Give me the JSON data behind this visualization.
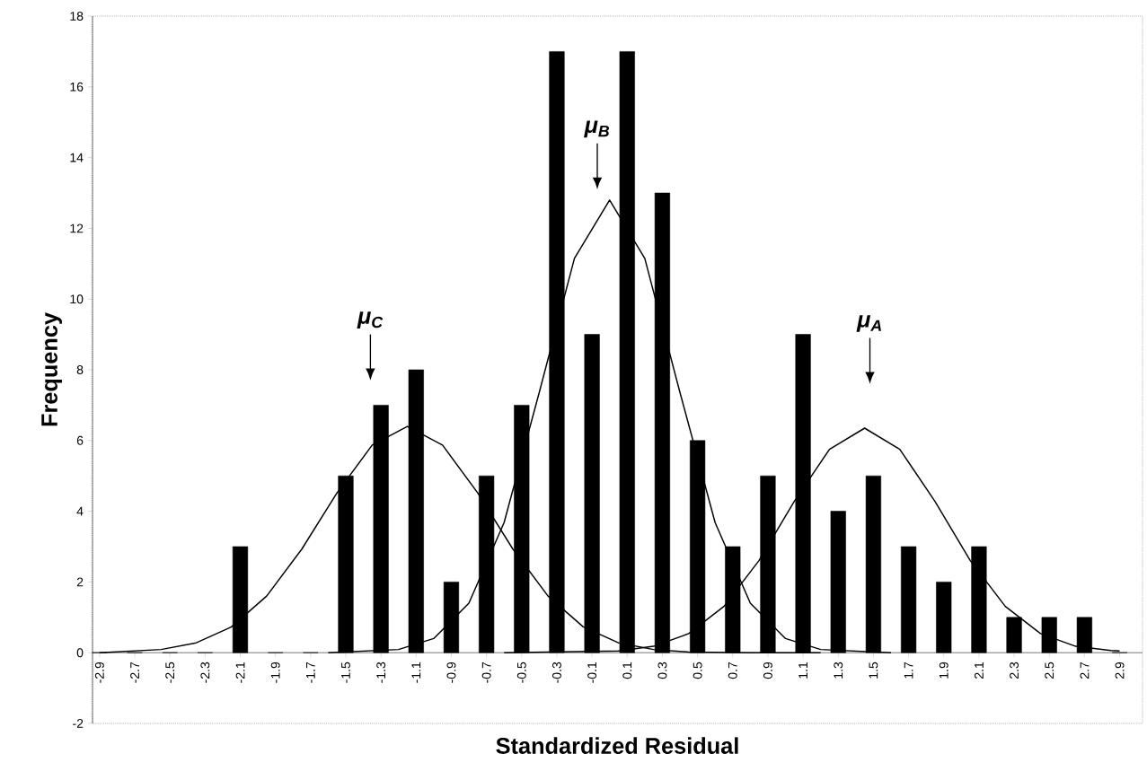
{
  "chart_data": {
    "type": "bar",
    "xlabel": "Standardized Residual",
    "ylabel": "Frequency",
    "xlim": [
      -2.94,
      3.03
    ],
    "ylim": [
      -2,
      18
    ],
    "xticks": [
      -2.9,
      -2.7,
      -2.5,
      -2.3,
      -2.1,
      -1.9,
      -1.7,
      -1.5,
      -1.3,
      -1.1,
      -0.9,
      -0.7,
      -0.5,
      -0.3,
      -0.1,
      0.1,
      0.3,
      0.5,
      0.7,
      0.9,
      1.1,
      1.3,
      1.5,
      1.7,
      1.9,
      2.1,
      2.3,
      2.5,
      2.7,
      2.9
    ],
    "yticks": [
      -2,
      0,
      2,
      4,
      6,
      8,
      10,
      12,
      14,
      16,
      18
    ],
    "series": [
      {
        "color": "#000000",
        "x": [
          -2.9,
          -2.7,
          -2.5,
          -2.3,
          -2.1,
          -1.9,
          -1.7,
          -1.5,
          -1.3,
          -1.1,
          -0.9,
          -0.7,
          -0.5,
          -0.3,
          -0.1,
          0.1,
          0.3,
          0.5,
          0.7,
          0.9,
          1.1,
          1.3,
          1.5,
          1.7,
          1.9,
          2.1,
          2.3,
          2.5,
          2.7,
          2.9
        ],
        "values": [
          0,
          0,
          0,
          0,
          3,
          0,
          0,
          5,
          7,
          8,
          2,
          5,
          7,
          17,
          9,
          17,
          13,
          6,
          3,
          5,
          9,
          4,
          5,
          3,
          2,
          3,
          1,
          1,
          1,
          0
        ]
      },
      {
        "type": "line",
        "color": "#000000",
        "x": [
          -2.9,
          -2.55,
          -2.35,
          -2.15,
          -1.95,
          -1.75,
          -1.55,
          -1.35,
          -1.15,
          -0.95,
          -0.75,
          -0.55,
          -0.35,
          -0.15,
          0.05,
          0.25,
          0.45,
          0.8,
          1.2
        ],
        "values": [
          0,
          0.09,
          0.28,
          0.73,
          1.6,
          2.93,
          4.52,
          5.87,
          6.4,
          5.87,
          4.52,
          2.93,
          1.6,
          0.73,
          0.28,
          0.09,
          0.02,
          0,
          0
        ]
      },
      {
        "type": "line",
        "color": "#000000",
        "x": [
          -1.6,
          -1.2,
          -1.0,
          -0.8,
          -0.6,
          -0.4,
          -0.2,
          0,
          0.2,
          0.4,
          0.6,
          0.8,
          1.0,
          1.2,
          1.6
        ],
        "values": [
          0,
          0.09,
          0.4,
          1.4,
          3.68,
          7.36,
          11.15,
          12.8,
          11.15,
          7.36,
          3.68,
          1.4,
          0.4,
          0.09,
          0
        ]
      },
      {
        "type": "line",
        "color": "#000000",
        "x": [
          -0.6,
          0.05,
          0.25,
          0.45,
          0.65,
          0.85,
          1.05,
          1.25,
          1.45,
          1.65,
          1.85,
          2.05,
          2.25,
          2.45,
          2.65,
          2.85,
          2.9
        ],
        "values": [
          0,
          0.05,
          0.18,
          0.54,
          1.31,
          2.61,
          4.28,
          5.75,
          6.35,
          5.75,
          4.28,
          2.61,
          1.31,
          0.54,
          0.18,
          0.06,
          0.05
        ]
      }
    ],
    "annotations": [
      "μ$_{C}$",
      "μ$_{B}$",
      "μ$_{A}$"
    ]
  }
}
